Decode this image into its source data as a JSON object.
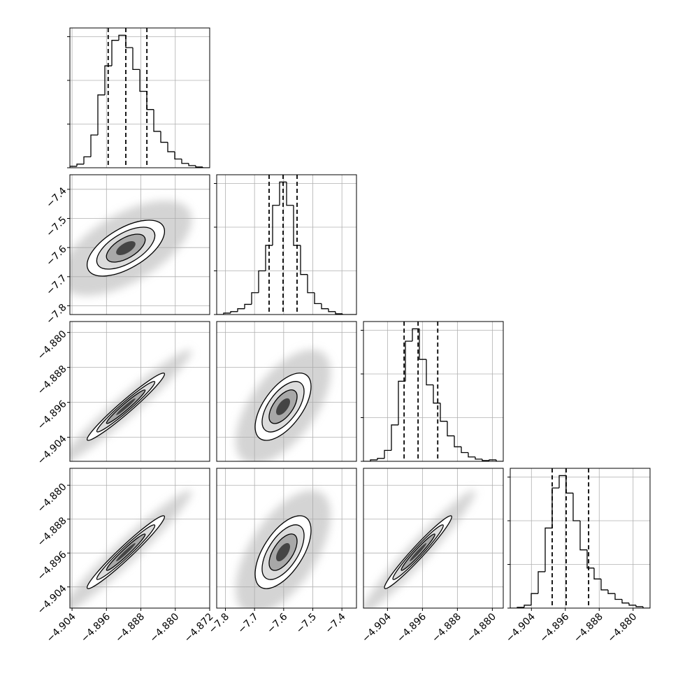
{
  "chart_data": {
    "type": "corner",
    "grid": true,
    "hist_ylim": [
      0,
      192
    ],
    "hist_yticks": [
      0,
      60,
      120,
      180
    ],
    "parameters": [
      {
        "lim": [
          -4.9045,
          -4.872
        ],
        "ticks": [
          {
            "value": -4.904,
            "label": "−4.904"
          },
          {
            "value": -4.896,
            "label": "−4.896"
          },
          {
            "value": -4.888,
            "label": "−4.888"
          },
          {
            "value": -4.88,
            "label": "−4.880"
          },
          {
            "value": -4.872,
            "label": "−4.872"
          }
        ],
        "bins": [
          -4.9045,
          -4.902875,
          -4.90125,
          -4.899625,
          -4.898,
          -4.896375,
          -4.89475,
          -4.893125,
          -4.8915,
          -4.889875,
          -4.88825,
          -4.886625,
          -4.885,
          -4.883375,
          -4.88175,
          -4.880125,
          -4.8785,
          -4.876875,
          -4.87525,
          -4.873625,
          -4.872
        ],
        "counts": [
          2,
          5,
          15,
          45,
          100,
          140,
          175,
          182,
          165,
          135,
          105,
          80,
          50,
          35,
          22,
          12,
          6,
          3,
          1,
          0
        ],
        "quantiles": [
          -4.8956,
          -4.8915,
          -4.8866
        ],
        "mean": -4.8915,
        "std": 0.0045
      },
      {
        "lim": [
          -7.83,
          -7.35
        ],
        "ticks": [
          {
            "value": -7.8,
            "label": "−7.8"
          },
          {
            "value": -7.7,
            "label": "−7.7"
          },
          {
            "value": -7.6,
            "label": "−7.6"
          },
          {
            "value": -7.5,
            "label": "−7.5"
          },
          {
            "value": -7.4,
            "label": "−7.4"
          }
        ],
        "bins": [
          -7.83,
          -7.806,
          -7.782,
          -7.758,
          -7.734,
          -7.71,
          -7.686,
          -7.662,
          -7.638,
          -7.614,
          -7.59,
          -7.566,
          -7.542,
          -7.518,
          -7.494,
          -7.47,
          -7.446,
          -7.422,
          -7.398,
          -7.374,
          -7.35
        ],
        "counts": [
          0,
          2,
          4,
          8,
          14,
          30,
          60,
          95,
          150,
          182,
          150,
          95,
          55,
          30,
          15,
          8,
          4,
          1,
          0,
          0
        ],
        "quantiles": [
          -7.65,
          -7.602,
          -7.554
        ],
        "mean": -7.602,
        "std": 0.048
      },
      {
        "lim": [
          -4.9095,
          -4.8775
        ],
        "ticks": [
          {
            "value": -4.904,
            "label": "−4.904"
          },
          {
            "value": -4.896,
            "label": "−4.896"
          },
          {
            "value": -4.888,
            "label": "−4.888"
          },
          {
            "value": -4.88,
            "label": "−4.880"
          }
        ],
        "bins": [
          -4.9095,
          -4.9079,
          -4.9063,
          -4.9047,
          -4.9031,
          -4.9015,
          -4.8999,
          -4.8983,
          -4.8967,
          -4.8951,
          -4.8935,
          -4.8919,
          -4.8903,
          -4.8887,
          -4.8871,
          -4.8855,
          -4.8839,
          -4.8823,
          -4.8807,
          -4.8791,
          -4.8775
        ],
        "counts": [
          0,
          2,
          4,
          15,
          50,
          110,
          165,
          182,
          140,
          105,
          80,
          55,
          35,
          20,
          12,
          6,
          3,
          1,
          2,
          0
        ],
        "quantiles": [
          -4.9002,
          -4.897,
          -4.8925
        ],
        "mean": -4.897,
        "std": 0.00385
      },
      {
        "lim": [
          -4.909,
          -4.876
        ],
        "ticks": [
          {
            "value": -4.904,
            "label": "−4.904"
          },
          {
            "value": -4.896,
            "label": "−4.896"
          },
          {
            "value": -4.888,
            "label": "−4.888"
          },
          {
            "value": -4.88,
            "label": "−4.880"
          }
        ],
        "bins": [
          -4.909,
          -4.90735,
          -4.9057,
          -4.90405,
          -4.9024,
          -4.90075,
          -4.8991,
          -4.89745,
          -4.8958,
          -4.89415,
          -4.8925,
          -4.89085,
          -4.8892,
          -4.88755,
          -4.8859,
          -4.88425,
          -4.8826,
          -4.88095,
          -4.8793,
          -4.87765,
          -4.876
        ],
        "counts": [
          0,
          1,
          4,
          20,
          50,
          110,
          165,
          182,
          158,
          120,
          80,
          55,
          40,
          25,
          20,
          12,
          7,
          4,
          2,
          0
        ],
        "quantiles": [
          -4.8991,
          -4.8958,
          -4.8905
        ],
        "mean": -4.8958,
        "std": 0.0043
      }
    ],
    "correlations": [
      [
        0.6
      ],
      [
        0.97,
        0.6
      ],
      [
        0.97,
        0.6,
        0.97
      ]
    ]
  }
}
